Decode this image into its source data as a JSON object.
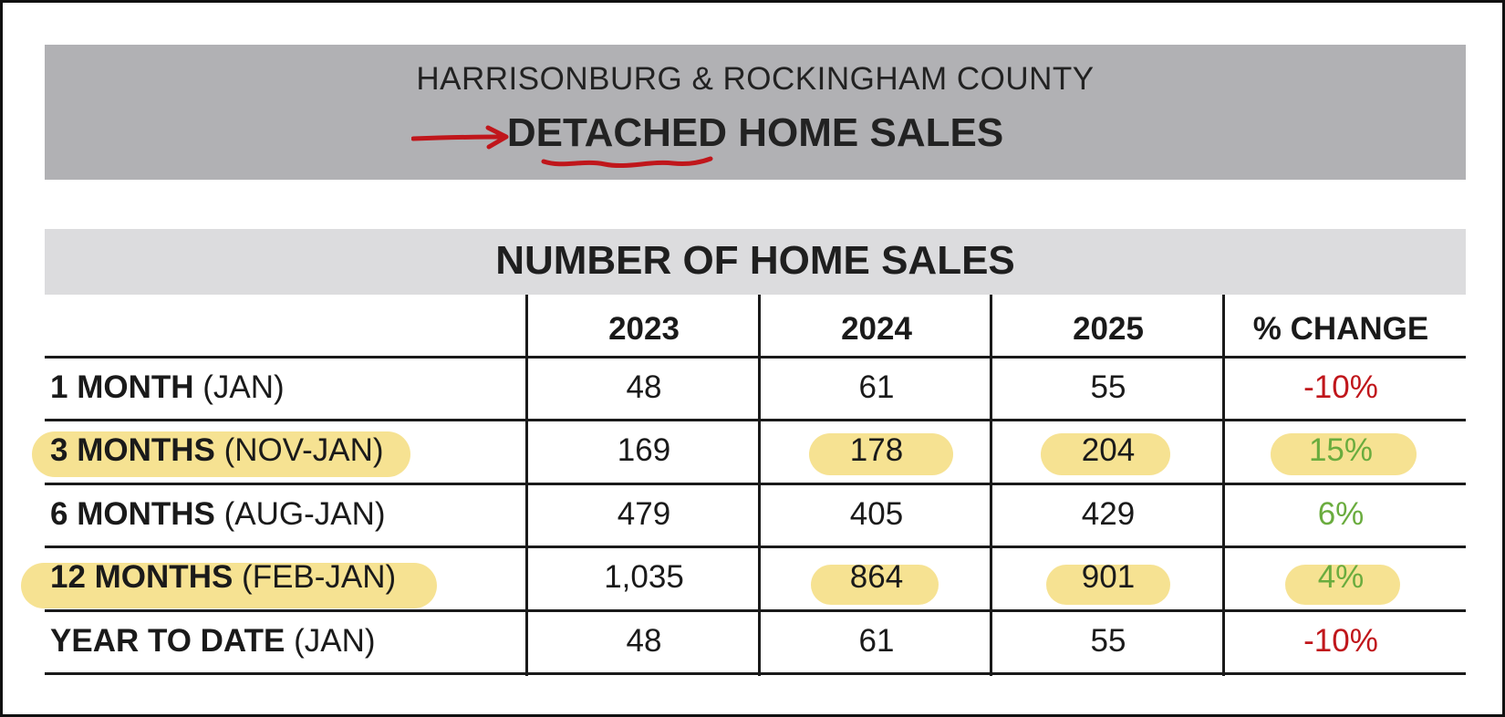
{
  "header": {
    "region": "HARRISONBURG & ROCKINGHAM COUNTY",
    "title_emphasis": "DETACHED",
    "title_rest": " HOME SALES"
  },
  "table": {
    "title": "NUMBER OF HOME SALES",
    "columns": [
      "2023",
      "2024",
      "2025",
      "% CHANGE"
    ],
    "rows": [
      {
        "label_bold": "1 MONTH",
        "label_note": " (JAN)",
        "v2023": "48",
        "v2024": "61",
        "v2025": "55",
        "change": "-10%"
      },
      {
        "label_bold": "3 MONTHS",
        "label_note": " (NOV-JAN)",
        "v2023": "169",
        "v2024": "178",
        "v2025": "204",
        "change": "15%"
      },
      {
        "label_bold": "6 MONTHS",
        "label_note": " (AUG-JAN)",
        "v2023": "479",
        "v2024": "405",
        "v2025": "429",
        "change": "6%"
      },
      {
        "label_bold": "12 MONTHS",
        "label_note": " (FEB-JAN)",
        "v2023": "1,035",
        "v2024": "864",
        "v2025": "901",
        "change": "4%"
      },
      {
        "label_bold": "YEAR TO DATE",
        "label_note": " (JAN)",
        "v2023": "48",
        "v2024": "61",
        "v2025": "55",
        "change": "-10%"
      }
    ]
  },
  "colors": {
    "negative": "#c0161b",
    "positive": "#6aac3e",
    "highlight": "#f5df86",
    "annotation": "#c0161b"
  },
  "annotations": {
    "arrow_icon": "red-hand-drawn-arrow",
    "underline": "red-hand-drawn-underline"
  }
}
